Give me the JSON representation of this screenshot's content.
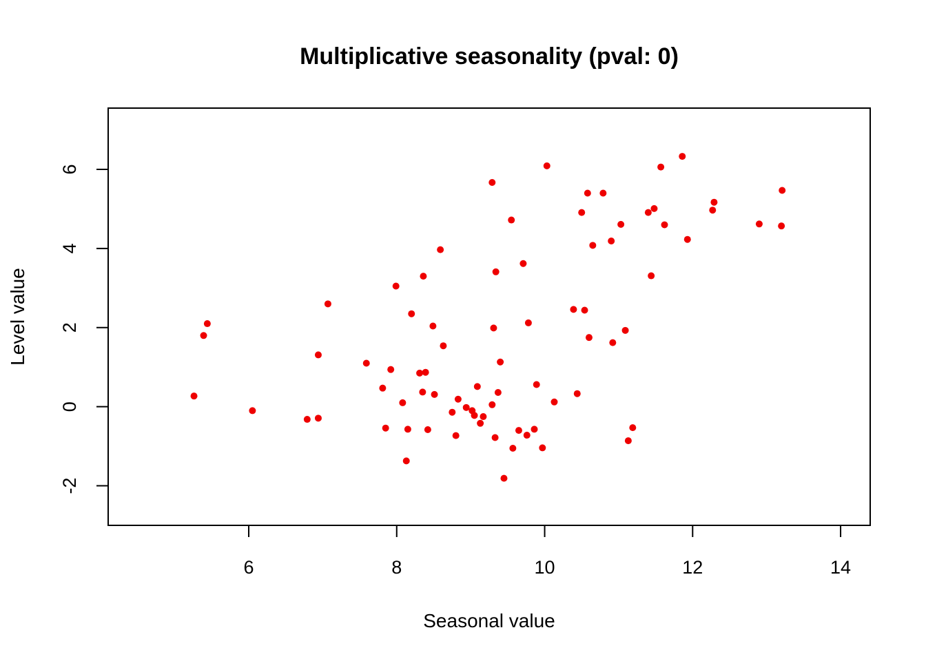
{
  "chart_data": {
    "type": "scatter",
    "title": "Multiplicative seasonality (pval: 0)",
    "xlabel": "Seasonal value",
    "ylabel": "Level value",
    "xlim": [
      4.1,
      14.4
    ],
    "ylim": [
      -3.0,
      7.55
    ],
    "xticks": [
      6,
      8,
      10,
      12,
      14
    ],
    "yticks": [
      -2,
      0,
      2,
      4,
      6
    ],
    "xtick_labels": [
      "6",
      "8",
      "10",
      "12",
      "14"
    ],
    "ytick_labels": [
      "-2",
      "0",
      "2",
      "4",
      "6"
    ],
    "point_color": "#ee0000",
    "grid": false,
    "legend": "none",
    "points": [
      [
        5.26,
        0.27
      ],
      [
        5.39,
        1.8
      ],
      [
        5.44,
        2.1
      ],
      [
        6.05,
        -0.1
      ],
      [
        6.79,
        -0.32
      ],
      [
        6.94,
        -0.29
      ],
      [
        6.94,
        1.31
      ],
      [
        7.07,
        2.6
      ],
      [
        7.59,
        1.1
      ],
      [
        7.81,
        0.47
      ],
      [
        7.85,
        -0.54
      ],
      [
        7.92,
        0.94
      ],
      [
        7.99,
        3.05
      ],
      [
        8.08,
        0.1
      ],
      [
        8.13,
        -1.37
      ],
      [
        8.15,
        -0.57
      ],
      [
        8.2,
        2.35
      ],
      [
        8.31,
        0.85
      ],
      [
        8.35,
        0.37
      ],
      [
        8.36,
        3.3
      ],
      [
        8.39,
        0.87
      ],
      [
        8.42,
        -0.58
      ],
      [
        8.49,
        2.04
      ],
      [
        8.51,
        0.31
      ],
      [
        8.59,
        3.97
      ],
      [
        8.63,
        1.54
      ],
      [
        8.75,
        -0.14
      ],
      [
        8.8,
        -0.73
      ],
      [
        8.83,
        0.19
      ],
      [
        8.94,
        -0.02
      ],
      [
        9.02,
        -0.1
      ],
      [
        9.05,
        -0.22
      ],
      [
        9.09,
        0.51
      ],
      [
        9.13,
        -0.42
      ],
      [
        9.17,
        -0.25
      ],
      [
        9.29,
        0.05
      ],
      [
        9.29,
        5.67
      ],
      [
        9.31,
        1.99
      ],
      [
        9.33,
        -0.78
      ],
      [
        9.34,
        3.41
      ],
      [
        9.37,
        0.36
      ],
      [
        9.4,
        1.13
      ],
      [
        9.45,
        -1.81
      ],
      [
        9.55,
        4.72
      ],
      [
        9.57,
        -1.05
      ],
      [
        9.65,
        -0.6
      ],
      [
        9.71,
        3.62
      ],
      [
        9.76,
        -0.72
      ],
      [
        9.78,
        2.12
      ],
      [
        9.86,
        -0.57
      ],
      [
        9.89,
        0.56
      ],
      [
        9.97,
        -1.04
      ],
      [
        10.03,
        6.09
      ],
      [
        10.13,
        0.12
      ],
      [
        10.39,
        2.46
      ],
      [
        10.44,
        0.33
      ],
      [
        10.5,
        4.91
      ],
      [
        10.54,
        2.44
      ],
      [
        10.58,
        5.4
      ],
      [
        10.6,
        1.75
      ],
      [
        10.65,
        4.08
      ],
      [
        10.79,
        5.4
      ],
      [
        10.9,
        4.19
      ],
      [
        10.92,
        1.62
      ],
      [
        11.03,
        4.61
      ],
      [
        11.09,
        1.93
      ],
      [
        11.13,
        -0.86
      ],
      [
        11.19,
        -0.53
      ],
      [
        11.4,
        4.91
      ],
      [
        11.44,
        3.31
      ],
      [
        11.48,
        5.01
      ],
      [
        11.57,
        6.06
      ],
      [
        11.62,
        4.6
      ],
      [
        11.86,
        6.33
      ],
      [
        11.93,
        4.23
      ],
      [
        12.27,
        4.97
      ],
      [
        12.29,
        5.17
      ],
      [
        12.9,
        4.62
      ],
      [
        13.2,
        4.57
      ],
      [
        13.21,
        5.47
      ]
    ]
  }
}
